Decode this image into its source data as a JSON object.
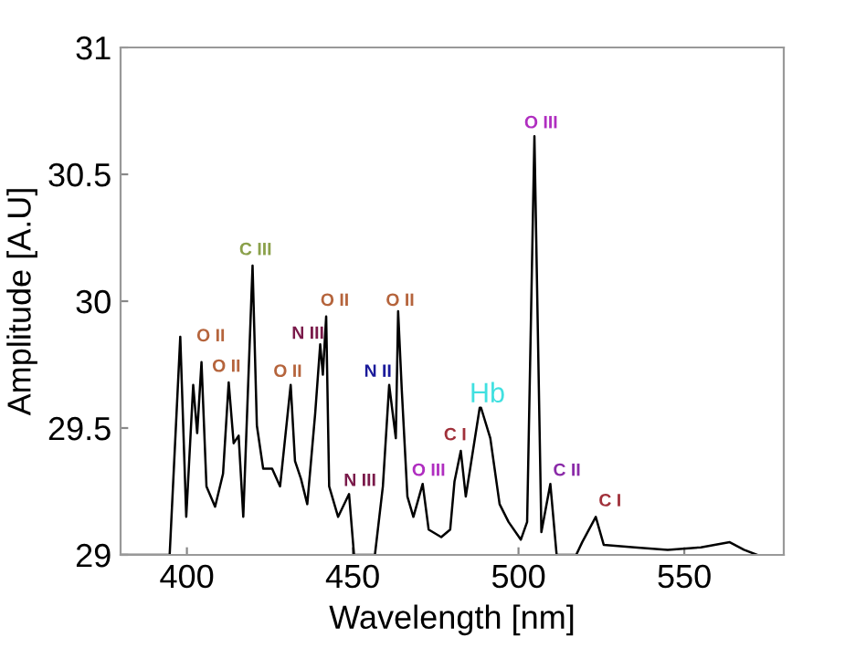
{
  "chart_data": {
    "type": "line",
    "xlabel": "Wavelength [nm]",
    "ylabel": "Amplitude [A.U]",
    "xlim": [
      380,
      580
    ],
    "ylim": [
      29,
      31
    ],
    "xticks": [
      400,
      450,
      500,
      550
    ],
    "yticks": [
      29,
      29.5,
      30,
      30.5,
      31
    ],
    "grid": false,
    "legend": false,
    "marker": "none",
    "line_style": "solid",
    "series": [
      {
        "color": "#000000",
        "x": [
          380,
          394.8,
          398,
          399.8,
          401.9,
          403.1,
          404.4,
          405.9,
          408.5,
          410.9,
          412.6,
          414.1,
          415.6,
          417.0,
          419.8,
          421.1,
          423,
          425.7,
          428.1,
          431.3,
          432.6,
          434.4,
          436.3,
          438.7,
          440.2,
          441,
          442.0,
          442.9,
          445.6,
          448.9,
          450.4,
          456.7,
          459.1,
          461,
          463,
          463.7,
          464.8,
          466.5,
          468.3,
          471.1,
          472.9,
          476.7,
          479.4,
          480.7,
          482.6,
          484.1,
          488.3,
          488.7,
          491.5,
          494.3,
          497,
          500.7,
          502.6,
          504.8,
          506.9,
          509.6,
          511.5,
          517.4,
          519.2,
          523.3,
          525.7,
          535,
          545,
          555,
          563.7,
          568,
          572
        ],
        "values": [
          29,
          29,
          29.86,
          29.15,
          29.67,
          29.48,
          29.76,
          29.27,
          29.19,
          29.32,
          29.68,
          29.44,
          29.47,
          29.15,
          30.14,
          29.51,
          29.34,
          29.34,
          29.27,
          29.67,
          29.37,
          29.3,
          29.2,
          29.56,
          29.83,
          29.71,
          29.94,
          29.27,
          29.15,
          29.24,
          29,
          29,
          29.27,
          29.67,
          29.46,
          29.96,
          29.65,
          29.23,
          29.15,
          29.28,
          29.1,
          29.07,
          29.1,
          29.29,
          29.41,
          29.23,
          29.58,
          29.58,
          29.46,
          29.2,
          29.13,
          29.06,
          29.13,
          30.65,
          29.09,
          29.28,
          29,
          29,
          29.05,
          29.15,
          29.04,
          29.03,
          29.02,
          29.03,
          29.05,
          29.02,
          29
        ]
      }
    ],
    "annotations": [
      {
        "text": "O II",
        "x": 404.4,
        "y": 29.76
      },
      {
        "text": "O II",
        "x": 412.6,
        "y": 29.68
      },
      {
        "text": "C III",
        "x": 419.8,
        "y": 30.14
      },
      {
        "text": "O II",
        "x": 431.3,
        "y": 29.67
      },
      {
        "text": "N III",
        "x": 440.2,
        "y": 29.83
      },
      {
        "text": "O II",
        "x": 442.0,
        "y": 29.94
      },
      {
        "text": "N III",
        "x": 448.9,
        "y": 29.24
      },
      {
        "text": "N II",
        "x": 461,
        "y": 29.67
      },
      {
        "text": "O II",
        "x": 463.7,
        "y": 29.96
      },
      {
        "text": "O III",
        "x": 471.1,
        "y": 29.28
      },
      {
        "text": "C I",
        "x": 482.6,
        "y": 29.41
      },
      {
        "text": "Hb",
        "x": 488.7,
        "y": 29.58
      },
      {
        "text": "O III",
        "x": 504.8,
        "y": 30.65
      },
      {
        "text": "C II",
        "x": 509.6,
        "y": 29.28
      },
      {
        "text": "C I",
        "x": 523.3,
        "y": 29.15
      }
    ]
  }
}
